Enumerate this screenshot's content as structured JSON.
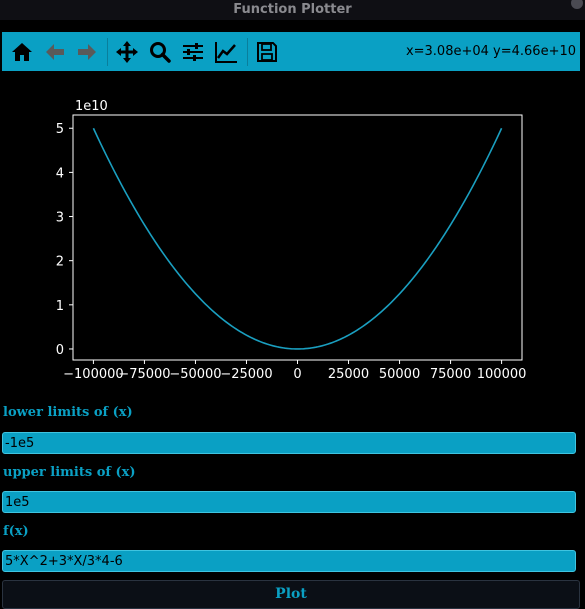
{
  "window": {
    "title": "Function Plotter"
  },
  "toolbar": {
    "buttons": [
      {
        "icon": "home-icon"
      },
      {
        "icon": "back-arrow-icon"
      },
      {
        "icon": "forward-arrow-icon"
      },
      {
        "icon": "pan-icon"
      },
      {
        "icon": "zoom-icon"
      },
      {
        "icon": "configure-subplots-icon"
      },
      {
        "icon": "edit-axis-icon"
      },
      {
        "icon": "save-icon"
      }
    ],
    "coords": "x=3.08e+04 y=4.66e+10"
  },
  "colors": {
    "accent": "#0aa0c4",
    "background": "#000000",
    "curve": "#1a9fc0"
  },
  "chart_data": {
    "type": "line",
    "offset_label": "1e10",
    "xlim": [
      -110000,
      110000
    ],
    "ylim": [
      -0.25,
      5.3
    ],
    "x_ticks": [
      -100000,
      -75000,
      -50000,
      -25000,
      0,
      25000,
      50000,
      75000,
      100000
    ],
    "x_tick_labels": [
      "−100000",
      "−75000",
      "−50000",
      "−25000",
      "0",
      "25000",
      "50000",
      "75000",
      "100000"
    ],
    "y_ticks": [
      0,
      1,
      2,
      3,
      4,
      5
    ],
    "y_tick_labels": [
      "0",
      "1",
      "2",
      "3",
      "4",
      "5"
    ],
    "series": [
      {
        "x": [
          -100000,
          -75000,
          -50000,
          -25000,
          0,
          25000,
          50000,
          75000,
          100000
        ],
        "y": [
          5.0,
          2.8125,
          1.25,
          0.3125,
          0.0,
          0.3125,
          1.25,
          2.8125,
          5.0
        ]
      }
    ]
  },
  "form": {
    "lower_label": "lower limits of (x)",
    "lower_value": "-1e5",
    "upper_label": "upper limits of (x)",
    "upper_value": "1e5",
    "fx_label": "f(x)",
    "fx_value": "5*X^2+3*X/3*4-6",
    "plot_button": "Plot"
  }
}
